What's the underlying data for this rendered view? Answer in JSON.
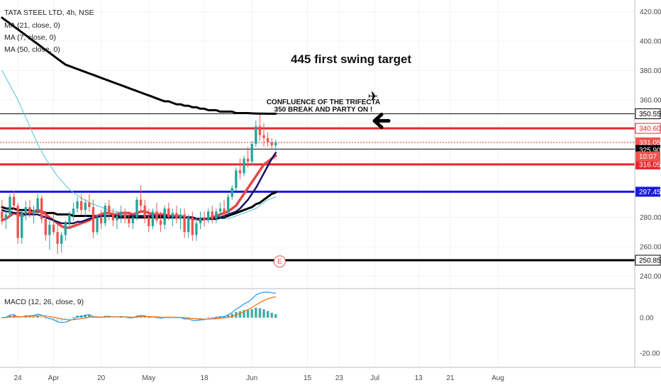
{
  "chart_data": {
    "type": "candlestick",
    "symbol_label": "TATA STEEL LTD, 4h, NSE",
    "overlays": [
      {
        "label": "MA (21, close, 0)",
        "color": "#1b1464"
      },
      {
        "label": "MA (7, close, 0)",
        "color": "#e84545"
      },
      {
        "label": "MA (50, close, 0)",
        "color": "#000000"
      }
    ],
    "extra_ma_color": "#4fc3d9",
    "price_axis": {
      "ylim": [
        232,
        428
      ],
      "ticks": [
        {
          "value": 420,
          "label": "420.00"
        },
        {
          "value": 400,
          "label": "400.00"
        },
        {
          "value": 380,
          "label": "380.00"
        },
        {
          "value": 360,
          "label": "360.00"
        },
        {
          "value": 280,
          "label": "280.00"
        },
        {
          "value": 260,
          "label": "260.00"
        },
        {
          "value": 240,
          "label": "240.00"
        }
      ]
    },
    "time_axis": {
      "n_bars_span": 160,
      "ticks": [
        {
          "bar": 4,
          "label": "24"
        },
        {
          "bar": 13,
          "label": "Apr"
        },
        {
          "bar": 25,
          "label": "20"
        },
        {
          "bar": 37,
          "label": "May"
        },
        {
          "bar": 51,
          "label": "18"
        },
        {
          "bar": 63,
          "label": "Jun"
        },
        {
          "bar": 77,
          "label": "15"
        },
        {
          "bar": 85,
          "label": "23"
        },
        {
          "bar": 94,
          "label": "Jul"
        },
        {
          "bar": 105,
          "label": "13"
        },
        {
          "bar": 113,
          "label": "21"
        },
        {
          "bar": 125,
          "label": "Aug"
        }
      ]
    },
    "horizontal_levels": [
      {
        "value": 350.55,
        "color": "#000000",
        "width": 1,
        "style": "solid",
        "tag": "350.55",
        "tag_bg": "#ffffff",
        "tag_fg": "#000000"
      },
      {
        "value": 340.6,
        "color": "#e3282d",
        "width": 3,
        "style": "solid",
        "tag": "340.60",
        "tag_bg": "#ffffff",
        "tag_fg": "#e3282d"
      },
      {
        "value": 331.05,
        "color": "#e3282d",
        "width": 1,
        "style": "dotted",
        "tag": "331.05",
        "tag_bg": "#ef5350",
        "tag_fg": "#ffffff"
      },
      {
        "value": 326.5,
        "color": "#000000",
        "width": 1,
        "style": "solid",
        "tag": "",
        "tag_bg": "",
        "tag_fg": ""
      },
      {
        "value": 316.05,
        "color": "#e3282d",
        "width": 3,
        "style": "solid",
        "tag": "316.05",
        "tag_bg": "#e3282d",
        "tag_fg": "#ffffff"
      },
      {
        "value": 297.45,
        "color": "#1a1adb",
        "width": 3,
        "style": "solid",
        "tag": "297.45",
        "tag_bg": "#1a1adb",
        "tag_fg": "#ffffff"
      },
      {
        "value": 250.85,
        "color": "#000000",
        "width": 3,
        "style": "solid",
        "tag": "250.85",
        "tag_bg": "#ffffff",
        "tag_fg": "#000000"
      }
    ],
    "price_tags_extra": [
      {
        "value": 325.9,
        "label": "325.90",
        "bg": "#000000",
        "fg": "#ffffff"
      },
      {
        "value": 321.5,
        "label": "10:07",
        "bg": "#ef5350",
        "fg": "#ffffff"
      }
    ],
    "annotations": [
      {
        "text": "445 first swing target",
        "price": 385,
        "bar": 88,
        "size": "big"
      },
      {
        "text": "CONFLUENCE OF THE TRIFECTA",
        "price": 357,
        "bar": 81,
        "size": "small"
      },
      {
        "text": "350 BREAK AND PARTY ON !",
        "price": 352,
        "bar": 81,
        "size": "small"
      },
      {
        "text": "E",
        "price": 250,
        "bar": 70,
        "size": "event"
      }
    ],
    "macd": {
      "label": "MACD (12, 26, close, 9)",
      "ylim": [
        -28,
        16
      ],
      "ticks": [
        {
          "value": 0,
          "label": "0.00"
        },
        {
          "value": -20,
          "label": "-20.00"
        }
      ],
      "macd_color": "#2196f3",
      "signal_color": "#ff6d00",
      "hist_color": "#26a69a"
    },
    "candles": [
      [
        284,
        292,
        275,
        279
      ],
      [
        279,
        286,
        272,
        282
      ],
      [
        282,
        296,
        280,
        294
      ],
      [
        294,
        298,
        285,
        288
      ],
      [
        288,
        290,
        262,
        266
      ],
      [
        266,
        285,
        262,
        283
      ],
      [
        283,
        291,
        278,
        287
      ],
      [
        287,
        292,
        280,
        283
      ],
      [
        283,
        288,
        276,
        285
      ],
      [
        285,
        296,
        283,
        293
      ],
      [
        293,
        295,
        276,
        279
      ],
      [
        279,
        284,
        264,
        268
      ],
      [
        268,
        278,
        258,
        275
      ],
      [
        275,
        282,
        268,
        270
      ],
      [
        270,
        275,
        255,
        262
      ],
      [
        262,
        270,
        256,
        268
      ],
      [
        268,
        278,
        264,
        276
      ],
      [
        276,
        284,
        272,
        282
      ],
      [
        282,
        290,
        278,
        286
      ],
      [
        286,
        294,
        283,
        291
      ],
      [
        291,
        296,
        282,
        285
      ],
      [
        285,
        292,
        280,
        290
      ],
      [
        290,
        296,
        284,
        287
      ],
      [
        287,
        292,
        266,
        270
      ],
      [
        270,
        282,
        268,
        280
      ],
      [
        280,
        285,
        272,
        276
      ],
      [
        276,
        290,
        274,
        288
      ],
      [
        288,
        292,
        278,
        282
      ],
      [
        282,
        286,
        274,
        278
      ],
      [
        278,
        284,
        272,
        281
      ],
      [
        281,
        288,
        276,
        284
      ],
      [
        284,
        286,
        276,
        279
      ],
      [
        279,
        284,
        273,
        276
      ],
      [
        276,
        282,
        272,
        280
      ],
      [
        280,
        294,
        278,
        292
      ],
      [
        292,
        302,
        284,
        288
      ],
      [
        288,
        292,
        276,
        280
      ],
      [
        280,
        286,
        270,
        274
      ],
      [
        274,
        286,
        272,
        284
      ],
      [
        284,
        290,
        276,
        278
      ],
      [
        278,
        284,
        270,
        275
      ],
      [
        275,
        288,
        272,
        286
      ],
      [
        286,
        290,
        278,
        280
      ],
      [
        280,
        286,
        274,
        283
      ],
      [
        283,
        288,
        276,
        279
      ],
      [
        279,
        286,
        272,
        282
      ],
      [
        282,
        286,
        266,
        270
      ],
      [
        270,
        282,
        266,
        280
      ],
      [
        280,
        284,
        264,
        268
      ],
      [
        268,
        280,
        264,
        276
      ],
      [
        276,
        284,
        272,
        280
      ],
      [
        280,
        284,
        274,
        278
      ],
      [
        278,
        286,
        276,
        284
      ],
      [
        284,
        288,
        276,
        279
      ],
      [
        279,
        286,
        276,
        284
      ],
      [
        284,
        290,
        280,
        286
      ],
      [
        286,
        292,
        280,
        283
      ],
      [
        283,
        296,
        282,
        294
      ],
      [
        294,
        302,
        292,
        300
      ],
      [
        300,
        314,
        298,
        312
      ],
      [
        312,
        320,
        306,
        310
      ],
      [
        310,
        322,
        308,
        320
      ],
      [
        320,
        328,
        314,
        318
      ],
      [
        318,
        332,
        316,
        330
      ],
      [
        330,
        346,
        328,
        342
      ],
      [
        342,
        350,
        332,
        336
      ],
      [
        336,
        344,
        328,
        334
      ],
      [
        334,
        338,
        328,
        331
      ],
      [
        331,
        334,
        326,
        329
      ],
      [
        329,
        333,
        325,
        331
      ]
    ],
    "ma7": [
      278,
      279,
      281,
      283,
      282,
      281,
      282,
      283,
      284,
      285,
      284,
      282,
      280,
      278,
      276,
      274,
      273,
      273,
      274,
      275,
      276,
      277,
      278,
      280,
      281,
      282,
      283,
      283,
      282,
      282,
      283,
      283,
      283,
      282,
      283,
      284,
      284,
      283,
      282,
      282,
      282,
      282,
      281,
      281,
      281,
      281,
      280,
      280,
      279,
      279,
      278,
      279,
      279,
      280,
      281,
      282,
      283,
      284,
      286,
      288,
      292,
      296,
      300,
      304,
      308,
      312,
      316,
      318,
      320,
      322
    ],
    "ma21": [
      285,
      284,
      284,
      283,
      283,
      283,
      282,
      282,
      282,
      282,
      281,
      280,
      279,
      278,
      277,
      276,
      276,
      276,
      276,
      277,
      277,
      278,
      279,
      280,
      280,
      281,
      281,
      281,
      281,
      281,
      281,
      281,
      281,
      281,
      281,
      281,
      281,
      281,
      281,
      281,
      281,
      281,
      281,
      280,
      280,
      280,
      280,
      280,
      280,
      279,
      279,
      279,
      279,
      279,
      280,
      280,
      281,
      282,
      283,
      284,
      286,
      289,
      292,
      296,
      300,
      305,
      310,
      315,
      320,
      324
    ],
    "ma50": [
      287,
      286,
      286,
      286,
      285,
      285,
      285,
      285,
      284,
      284,
      284,
      283,
      283,
      283,
      282,
      282,
      282,
      282,
      281,
      281,
      281,
      281,
      281,
      281,
      281,
      281,
      281,
      281,
      281,
      280,
      280,
      280,
      280,
      280,
      280,
      280,
      280,
      280,
      280,
      280,
      280,
      280,
      280,
      280,
      280,
      280,
      280,
      280,
      280,
      279,
      279,
      279,
      279,
      279,
      279,
      280,
      280,
      281,
      282,
      283,
      284,
      285,
      286,
      287,
      289,
      290,
      292,
      294,
      296,
      297
    ],
    "ma200": [
      416,
      414,
      412,
      410,
      408,
      406,
      404,
      402,
      400,
      398,
      396,
      394,
      392,
      390,
      388,
      386,
      384,
      383,
      382,
      381,
      380,
      379,
      378,
      377,
      376,
      375,
      374,
      373,
      372,
      371,
      370,
      369,
      368,
      367,
      366,
      365,
      364,
      363,
      362,
      361,
      360,
      359,
      359,
      358,
      357,
      357,
      356,
      356,
      355,
      355,
      354,
      354,
      353,
      353,
      353,
      352,
      352,
      352,
      352,
      351,
      351,
      351,
      351,
      350.8,
      350.7,
      350.6,
      350.6,
      350.55,
      350.55,
      350.55
    ],
    "ma_cyan": [
      380,
      375,
      370,
      365,
      360,
      354,
      348,
      342,
      336,
      330,
      325,
      320,
      316,
      312,
      308,
      305,
      302,
      299,
      297,
      295,
      293,
      292,
      290,
      289,
      288,
      287,
      286,
      285,
      284,
      284,
      283,
      283,
      282,
      282,
      282,
      281,
      281,
      281,
      281,
      281,
      280,
      280,
      280,
      280,
      280,
      280,
      280,
      280,
      280,
      279,
      279,
      279,
      279,
      279,
      279,
      279,
      279,
      279,
      280,
      281,
      282,
      283,
      284,
      285,
      286,
      288,
      290,
      292,
      293,
      294
    ]
  }
}
